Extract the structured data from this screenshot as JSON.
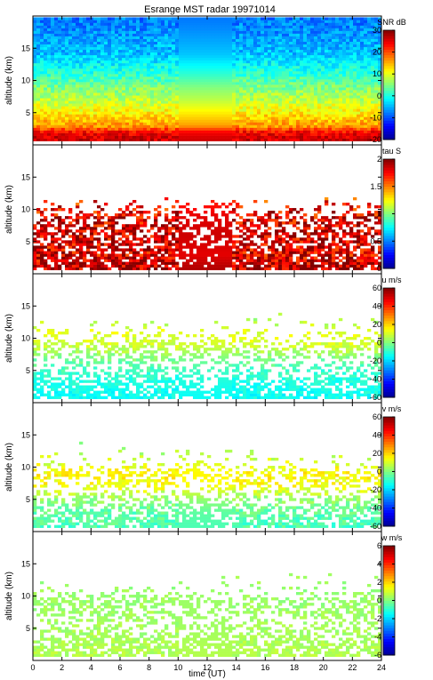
{
  "title": "Esrange MST radar 19971014",
  "xlabel": "time (UT)",
  "colors": {
    "no_data": "#ffffff",
    "colormap": [
      "#00008f",
      "#0000ff",
      "#0080ff",
      "#00ffff",
      "#80ff80",
      "#ffff00",
      "#ff8000",
      "#ff0000",
      "#800000"
    ]
  },
  "chart_data": [
    {
      "type": "heatmap",
      "name": "snr",
      "ylabel": "altitude (km)",
      "cbar_label": "SNR dB",
      "xlim": [
        0,
        24
      ],
      "ylim": [
        0,
        20
      ],
      "xticks": [
        "0",
        "2",
        "4",
        "6",
        "8",
        "10",
        "12",
        "14",
        "16",
        "18",
        "20",
        "22",
        "24"
      ],
      "yticks": [
        "5",
        "10",
        "15"
      ],
      "clim": [
        -20,
        30
      ],
      "cbar_ticks": [
        "-20",
        "-10",
        "0",
        "10",
        "20",
        "30"
      ],
      "profile": [
        [
          1,
          26
        ],
        [
          2,
          24
        ],
        [
          3,
          16
        ],
        [
          5,
          12
        ],
        [
          7,
          8
        ],
        [
          9,
          5
        ],
        [
          11,
          1
        ],
        [
          14,
          -4
        ],
        [
          18,
          -7
        ],
        [
          20,
          -8
        ]
      ],
      "coverage": [
        [
          0,
          1.0
        ],
        [
          20,
          1.0
        ]
      ],
      "noise": 3
    },
    {
      "type": "heatmap",
      "name": "tau",
      "ylabel": "altitude (km)",
      "cbar_label": "tau S",
      "xlim": [
        0,
        24
      ],
      "ylim": [
        0,
        20
      ],
      "xticks": [
        "0",
        "2",
        "4",
        "6",
        "8",
        "10",
        "12",
        "14",
        "16",
        "18",
        "20",
        "22",
        "24"
      ],
      "yticks": [
        "5",
        "10",
        "15"
      ],
      "clim": [
        0,
        2
      ],
      "cbar_ticks": [
        "0",
        "0.5",
        "1",
        "1.5",
        "2"
      ],
      "profile": [
        [
          1,
          1.9
        ],
        [
          3,
          1.8
        ],
        [
          6,
          1.85
        ],
        [
          9,
          1.8
        ],
        [
          11,
          1.7
        ],
        [
          20,
          1.7
        ]
      ],
      "coverage": [
        [
          0,
          0.9
        ],
        [
          3,
          0.75
        ],
        [
          6,
          0.6
        ],
        [
          9,
          0.5
        ],
        [
          10.5,
          0.2
        ],
        [
          12,
          0.0
        ],
        [
          20,
          0.0
        ]
      ],
      "noise": 0.25
    },
    {
      "type": "heatmap",
      "name": "u",
      "ylabel": "altitude (km)",
      "cbar_label": "u m/s",
      "xlim": [
        0,
        24
      ],
      "ylim": [
        0,
        20
      ],
      "xticks": [
        "0",
        "2",
        "4",
        "6",
        "8",
        "10",
        "12",
        "14",
        "16",
        "18",
        "20",
        "22",
        "24"
      ],
      "yticks": [
        "5",
        "10",
        "15"
      ],
      "clim": [
        -60,
        60
      ],
      "cbar_ticks": [
        "-60",
        "-40",
        "-20",
        "0",
        "20",
        "40",
        "60"
      ],
      "profile": [
        [
          1,
          -14
        ],
        [
          3,
          -12
        ],
        [
          5,
          -8
        ],
        [
          7,
          0
        ],
        [
          9,
          10
        ],
        [
          11,
          12
        ],
        [
          13,
          5
        ],
        [
          20,
          0
        ]
      ],
      "coverage": [
        [
          0,
          0.85
        ],
        [
          4,
          0.5
        ],
        [
          6,
          0.3
        ],
        [
          9,
          0.55
        ],
        [
          10.5,
          0.2
        ],
        [
          12,
          0.05
        ],
        [
          14,
          0.0
        ],
        [
          20,
          0.0
        ]
      ],
      "noise": 4
    },
    {
      "type": "heatmap",
      "name": "v",
      "ylabel": "altitude (km)",
      "cbar_label": "v m/s",
      "xlim": [
        0,
        24
      ],
      "ylim": [
        0,
        20
      ],
      "xticks": [
        "0",
        "2",
        "4",
        "6",
        "8",
        "10",
        "12",
        "14",
        "16",
        "18",
        "20",
        "22",
        "24"
      ],
      "yticks": [
        "5",
        "10",
        "15"
      ],
      "clim": [
        -60,
        60
      ],
      "cbar_ticks": [
        "-60",
        "-40",
        "-20",
        "0",
        "20",
        "40",
        "60"
      ],
      "profile": [
        [
          1,
          -6
        ],
        [
          3,
          -4
        ],
        [
          5,
          2
        ],
        [
          7,
          14
        ],
        [
          9,
          16
        ],
        [
          11,
          10
        ],
        [
          13,
          4
        ],
        [
          20,
          0
        ]
      ],
      "coverage": [
        [
          0,
          0.85
        ],
        [
          4,
          0.5
        ],
        [
          6,
          0.3
        ],
        [
          9,
          0.55
        ],
        [
          10.5,
          0.2
        ],
        [
          12,
          0.05
        ],
        [
          14,
          0.0
        ],
        [
          20,
          0.0
        ]
      ],
      "noise": 5
    },
    {
      "type": "heatmap",
      "name": "w",
      "ylabel": "altitude (km)",
      "cbar_label": "w m/s",
      "xlim": [
        0,
        24
      ],
      "ylim": [
        0,
        20
      ],
      "xticks": [
        "0",
        "2",
        "4",
        "6",
        "8",
        "10",
        "12",
        "14",
        "16",
        "18",
        "20",
        "22",
        "24"
      ],
      "yticks": [
        "5",
        "10",
        "15"
      ],
      "clim": [
        -6,
        6
      ],
      "cbar_ticks": [
        "-6",
        "-4",
        "-2",
        "0",
        "2",
        "4",
        "6"
      ],
      "profile": [
        [
          1,
          0.6
        ],
        [
          5,
          0.4
        ],
        [
          10,
          0.3
        ],
        [
          20,
          0.2
        ]
      ],
      "coverage": [
        [
          0,
          0.85
        ],
        [
          4,
          0.5
        ],
        [
          6,
          0.3
        ],
        [
          9,
          0.55
        ],
        [
          10.5,
          0.2
        ],
        [
          12,
          0.05
        ],
        [
          14,
          0.0
        ],
        [
          20,
          0.0
        ]
      ],
      "noise": 0.3
    }
  ]
}
